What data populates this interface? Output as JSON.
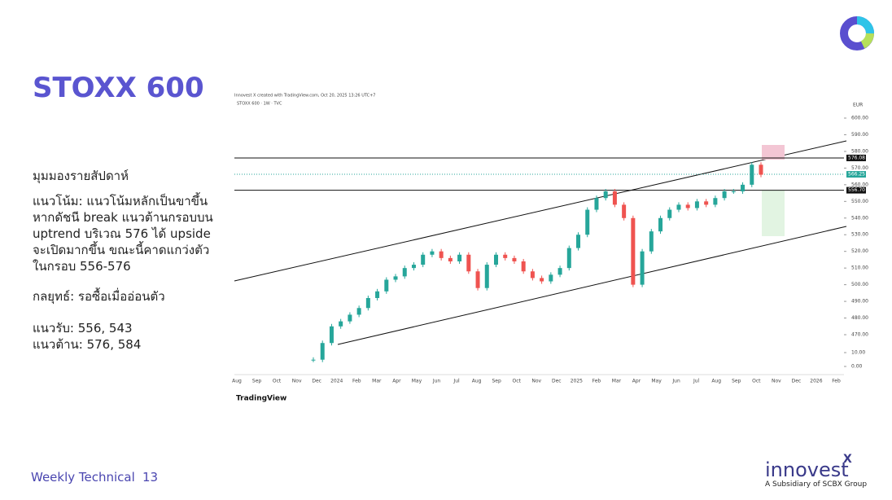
{
  "header": {
    "title": "STOXX 600"
  },
  "body": {
    "heading": "มุมมองรายสัปดาห์",
    "trend": [
      "แนวโน้ม: แนวโน้มหลักเป็นขาขึ้น",
      "หากดัชนี break แนวต้านกรอบบน",
      "uptrend บริเวณ 576 ได้ upside",
      "จะเปิดมากขึ้น ขณะนี้คาดแกว่งตัว",
      "ในกรอบ 556-576"
    ],
    "strategy": "กลยุทธ์: รอซื้อเมื่ออ่อนตัว",
    "support": "แนวรับ: 556, 543",
    "resistance": "แนวต้าน: 576, 584"
  },
  "chart": {
    "type": "candlestick",
    "caption": "Innovest X created with TradingView.com, Oct 20, 2025 13:26 UTC+7",
    "legend": "STOXX 600 · 1W · TVC",
    "currency": "EUR",
    "brand": "TradingView",
    "closes": [
      455,
      465,
      475,
      478,
      482,
      486,
      492,
      496,
      503,
      505,
      510,
      512,
      518,
      520,
      516,
      514,
      518,
      508,
      498,
      512,
      518,
      516,
      514,
      508,
      504,
      502,
      506,
      510,
      522,
      530,
      545,
      552,
      556,
      548,
      540,
      500,
      520,
      532,
      540,
      545,
      548,
      546,
      550,
      548,
      552,
      556,
      556,
      560,
      572,
      566
    ],
    "levels": [
      {
        "value": 576.08,
        "label": "576.08"
      },
      {
        "value": 556.7,
        "label": "556.70"
      }
    ],
    "last": {
      "value": 566.25,
      "label": "566.25"
    },
    "ylim": [
      600,
      470
    ],
    "yticks": [
      {
        "value": 600,
        "label": "600.00"
      },
      {
        "value": 590,
        "label": "590.00"
      },
      {
        "value": 580,
        "label": "580.00"
      },
      {
        "value": 570,
        "label": "570.00"
      },
      {
        "value": 560,
        "label": "560.00"
      },
      {
        "value": 550,
        "label": "550.00"
      },
      {
        "value": 540,
        "label": "540.00"
      },
      {
        "value": 530,
        "label": "530.00"
      },
      {
        "value": 520,
        "label": "520.00"
      },
      {
        "value": 510,
        "label": "510.00"
      },
      {
        "value": 500,
        "label": "500.00"
      },
      {
        "value": 490,
        "label": "490.00"
      },
      {
        "value": 480,
        "label": "480.00"
      },
      {
        "value": 470,
        "label": "470.00"
      }
    ],
    "macd_ticks": [
      {
        "value": 10,
        "label": "10.00"
      },
      {
        "value": 0,
        "label": "0.00"
      }
    ],
    "months": [
      "Aug",
      "Sep",
      "Oct",
      "Nov",
      "Dec",
      "2024",
      "Feb",
      "Mar",
      "Apr",
      "May",
      "Jun",
      "Jul",
      "Aug",
      "Sep",
      "Oct",
      "Nov",
      "Dec",
      "2025",
      "Feb",
      "Mar",
      "Apr",
      "May",
      "Jun",
      "Jul",
      "Aug",
      "Sep",
      "Oct",
      "Nov",
      "Dec",
      "2026",
      "Feb"
    ]
  },
  "footer": {
    "label": "Weekly Technical",
    "page": "13",
    "brand": "innovest",
    "brand_mark": "X",
    "tagline": "A Subsidiary of SCBX Group"
  }
}
